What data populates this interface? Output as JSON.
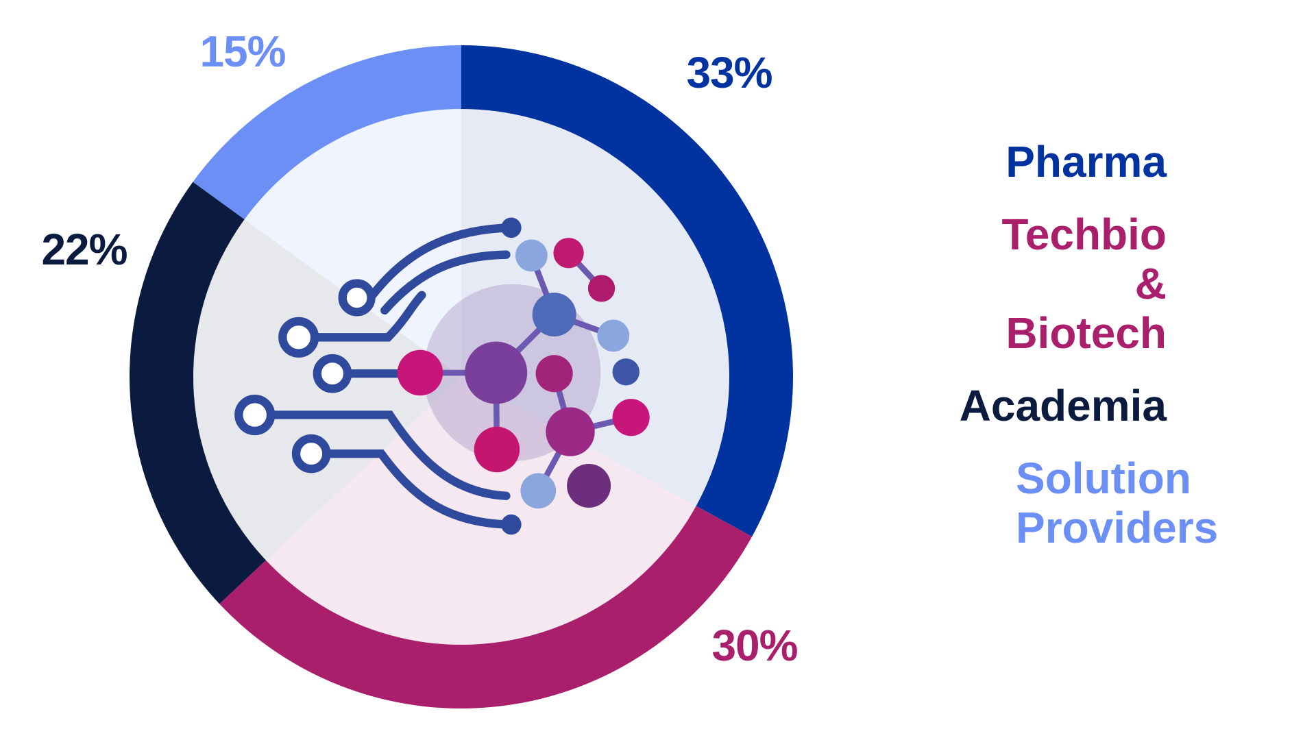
{
  "chart_data": {
    "type": "pie",
    "categories": [
      "Pharma",
      "Techbio & Biotech",
      "Academia",
      "Solution Providers"
    ],
    "values": [
      33,
      30,
      22,
      15
    ],
    "value_labels": [
      "33%",
      "30%",
      "22%",
      "15%"
    ],
    "colors": [
      "#0033a0",
      "#a91f6b",
      "#0b1a3f",
      "#6b8ff5"
    ]
  }
}
